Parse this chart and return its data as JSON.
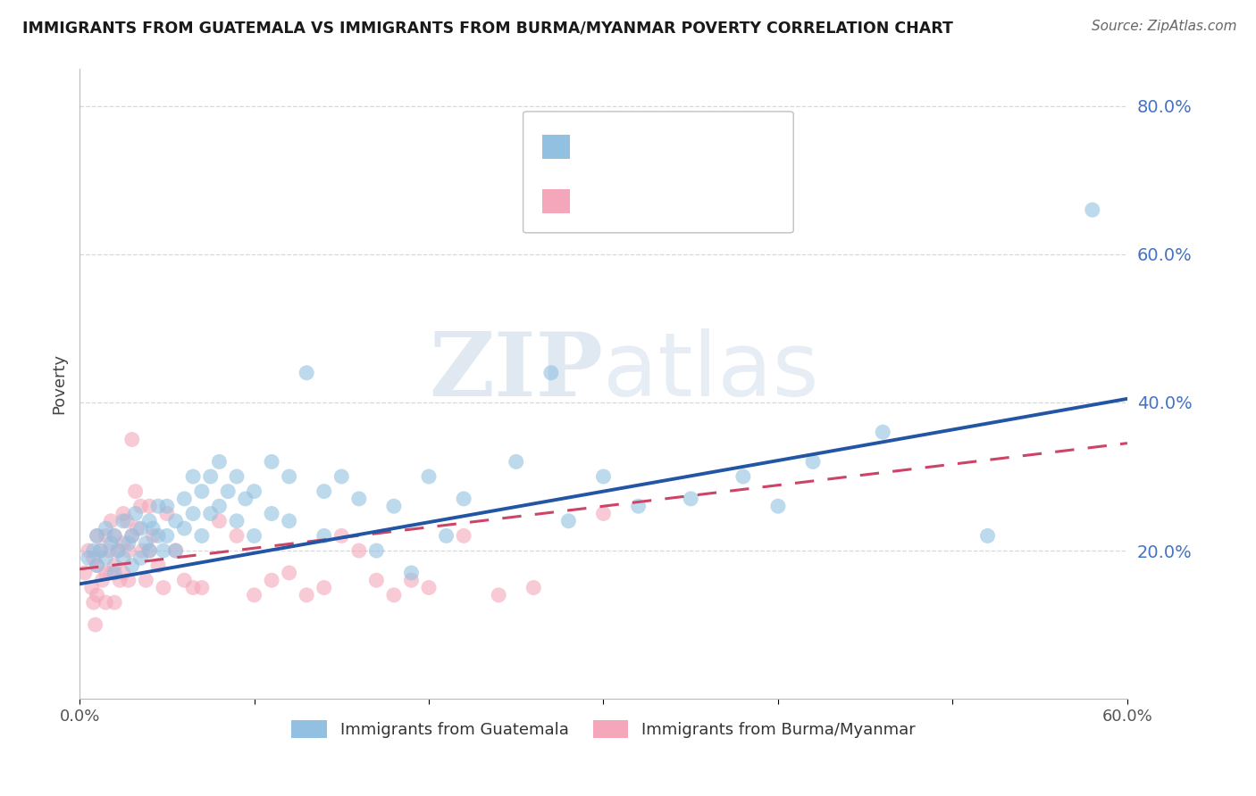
{
  "title": "IMMIGRANTS FROM GUATEMALA VS IMMIGRANTS FROM BURMA/MYANMAR POVERTY CORRELATION CHART",
  "source": "Source: ZipAtlas.com",
  "ylabel": "Poverty",
  "background_color": "#ffffff",
  "grid_color": "#d8d8d8",
  "watermark_text": "ZIPatlas",
  "blue_color": "#92c0e0",
  "pink_color": "#f4a7bb",
  "trend_blue_color": "#2255a4",
  "trend_pink_color": "#cc4466",
  "legend_num_color": "#4472c4",
  "legend_label_color": "#333333",
  "blue_scatter_x": [
    0.005,
    0.008,
    0.01,
    0.01,
    0.012,
    0.015,
    0.015,
    0.018,
    0.02,
    0.02,
    0.022,
    0.025,
    0.025,
    0.028,
    0.03,
    0.03,
    0.032,
    0.035,
    0.035,
    0.038,
    0.04,
    0.04,
    0.042,
    0.045,
    0.045,
    0.048,
    0.05,
    0.05,
    0.055,
    0.055,
    0.06,
    0.06,
    0.065,
    0.065,
    0.07,
    0.07,
    0.075,
    0.075,
    0.08,
    0.08,
    0.085,
    0.09,
    0.09,
    0.095,
    0.1,
    0.1,
    0.11,
    0.11,
    0.12,
    0.12,
    0.13,
    0.14,
    0.14,
    0.15,
    0.16,
    0.17,
    0.18,
    0.19,
    0.2,
    0.21,
    0.22,
    0.25,
    0.27,
    0.28,
    0.3,
    0.32,
    0.35,
    0.38,
    0.4,
    0.42,
    0.46,
    0.52,
    0.58
  ],
  "blue_scatter_y": [
    0.19,
    0.2,
    0.22,
    0.18,
    0.2,
    0.23,
    0.19,
    0.21,
    0.22,
    0.17,
    0.2,
    0.24,
    0.19,
    0.21,
    0.22,
    0.18,
    0.25,
    0.23,
    0.19,
    0.21,
    0.24,
    0.2,
    0.23,
    0.26,
    0.22,
    0.2,
    0.26,
    0.22,
    0.24,
    0.2,
    0.27,
    0.23,
    0.3,
    0.25,
    0.28,
    0.22,
    0.3,
    0.25,
    0.32,
    0.26,
    0.28,
    0.3,
    0.24,
    0.27,
    0.28,
    0.22,
    0.32,
    0.25,
    0.3,
    0.24,
    0.44,
    0.28,
    0.22,
    0.3,
    0.27,
    0.2,
    0.26,
    0.17,
    0.3,
    0.22,
    0.27,
    0.32,
    0.44,
    0.24,
    0.3,
    0.26,
    0.27,
    0.3,
    0.26,
    0.32,
    0.36,
    0.22,
    0.66
  ],
  "pink_scatter_x": [
    0.003,
    0.005,
    0.007,
    0.008,
    0.008,
    0.009,
    0.01,
    0.01,
    0.01,
    0.012,
    0.013,
    0.015,
    0.015,
    0.015,
    0.017,
    0.018,
    0.018,
    0.02,
    0.02,
    0.02,
    0.022,
    0.023,
    0.025,
    0.025,
    0.025,
    0.027,
    0.028,
    0.028,
    0.03,
    0.03,
    0.032,
    0.033,
    0.035,
    0.036,
    0.038,
    0.04,
    0.04,
    0.042,
    0.045,
    0.048,
    0.05,
    0.055,
    0.06,
    0.065,
    0.07,
    0.08,
    0.09,
    0.1,
    0.11,
    0.12,
    0.13,
    0.14,
    0.15,
    0.16,
    0.17,
    0.18,
    0.19,
    0.2,
    0.22,
    0.24,
    0.26,
    0.3
  ],
  "pink_scatter_y": [
    0.17,
    0.2,
    0.15,
    0.19,
    0.13,
    0.1,
    0.22,
    0.18,
    0.14,
    0.2,
    0.16,
    0.22,
    0.17,
    0.13,
    0.2,
    0.24,
    0.17,
    0.22,
    0.18,
    0.13,
    0.2,
    0.16,
    0.25,
    0.21,
    0.17,
    0.24,
    0.2,
    0.16,
    0.35,
    0.22,
    0.28,
    0.23,
    0.26,
    0.2,
    0.16,
    0.26,
    0.2,
    0.22,
    0.18,
    0.15,
    0.25,
    0.2,
    0.16,
    0.15,
    0.15,
    0.24,
    0.22,
    0.14,
    0.16,
    0.17,
    0.14,
    0.15,
    0.22,
    0.2,
    0.16,
    0.14,
    0.16,
    0.15,
    0.22,
    0.14,
    0.15,
    0.25
  ],
  "blue_trend_y_start": 0.155,
  "blue_trend_y_end": 0.405,
  "pink_trend_y_start": 0.175,
  "pink_trend_y_end": 0.345,
  "xmin": 0.0,
  "xmax": 0.6,
  "ymin": 0.0,
  "ymax": 0.85
}
